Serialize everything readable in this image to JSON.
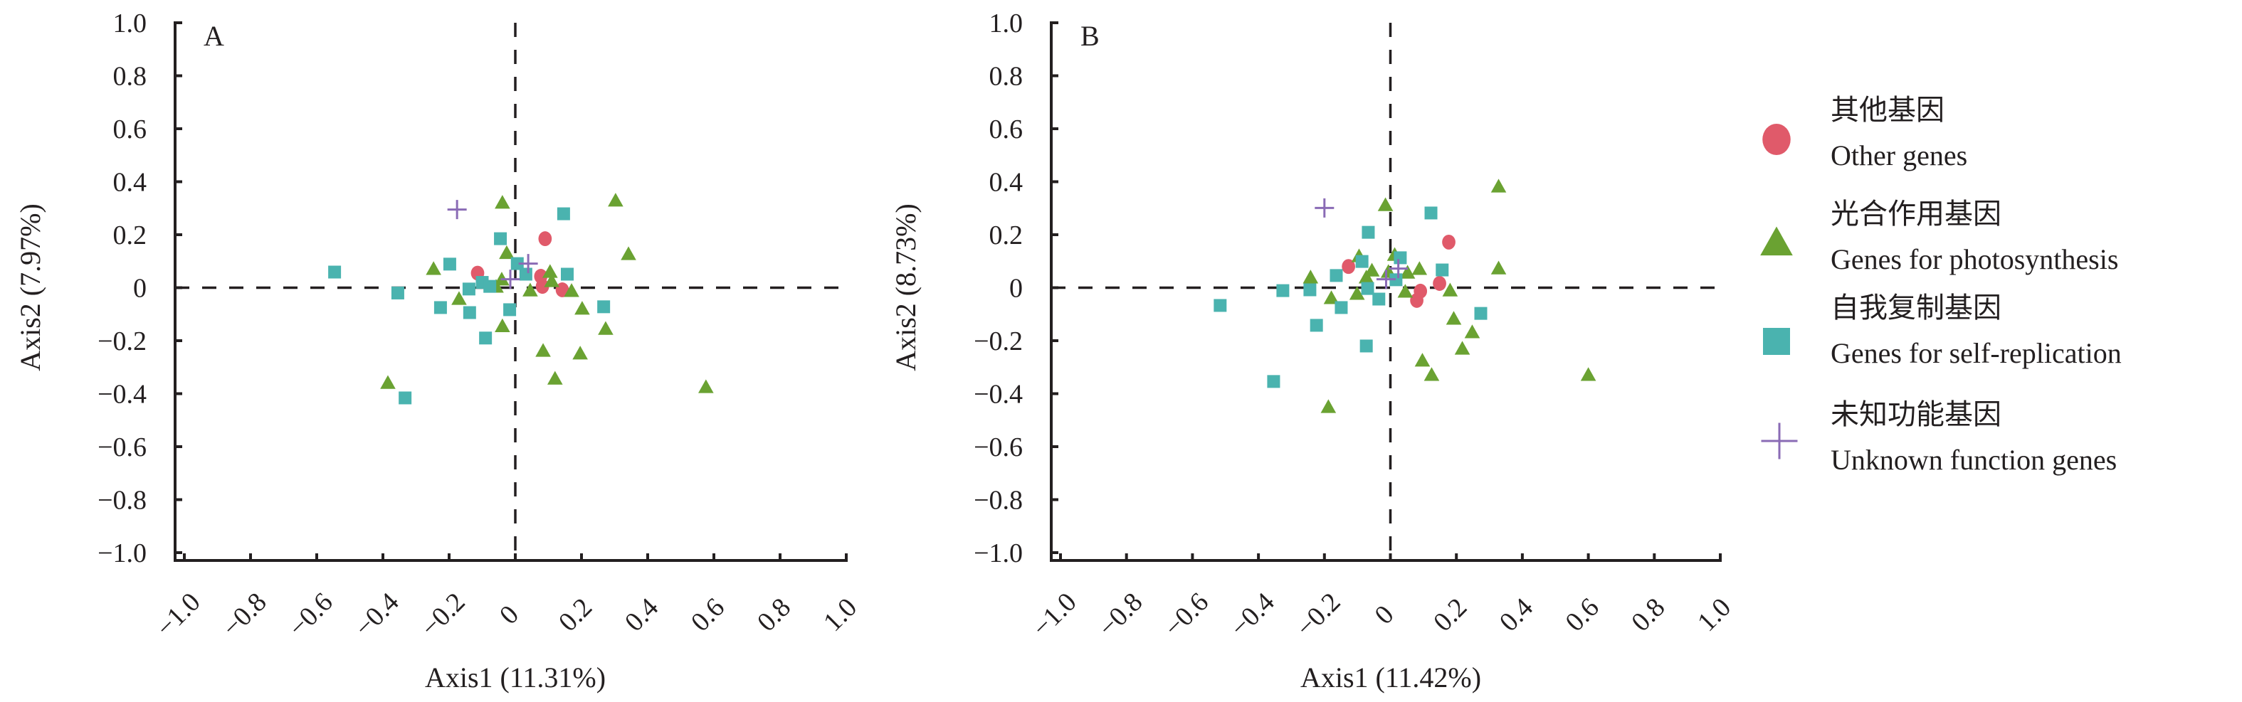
{
  "chart_data": [
    {
      "type": "scatter",
      "panel_label": "A",
      "xlabel": "Axis1 (11.31%)",
      "ylabel": "Axis2 (7.97%)",
      "xlim": [
        -1.0,
        1.0
      ],
      "ylim": [
        -1.0,
        1.0
      ],
      "x_ticks": [
        "−1.0",
        "−0.8",
        "−0.6",
        "−0.4",
        "−0.2",
        "0",
        "0.2",
        "0.4",
        "0.6",
        "0.8",
        "1.0"
      ],
      "y_ticks": [
        "1.0",
        "0.8",
        "0.6",
        "0.4",
        "0.2",
        "0",
        "−0.2",
        "−0.4",
        "−0.6",
        "−0.8",
        "−1.0"
      ],
      "reference_lines": {
        "x": 0,
        "y": 0,
        "style": "dashed"
      },
      "grid": false,
      "series": [
        {
          "name": "Other genes",
          "marker": "circle",
          "points": [
            [
              0.09,
              0.185
            ],
            [
              -0.114,
              0.055
            ],
            [
              0.077,
              0.043
            ],
            [
              0.082,
              0.005
            ],
            [
              0.142,
              -0.008
            ]
          ]
        },
        {
          "name": "Genes for photosynthesis",
          "marker": "triangle",
          "points": [
            [
              -0.039,
              0.32
            ],
            [
              0.303,
              0.328
            ],
            [
              0.342,
              0.126
            ],
            [
              -0.026,
              0.13
            ],
            [
              -0.247,
              0.07
            ],
            [
              -0.041,
              0.03
            ],
            [
              -0.058,
              0.003
            ],
            [
              0.105,
              0.059
            ],
            [
              0.11,
              0.024
            ],
            [
              0.045,
              -0.011
            ],
            [
              0.17,
              -0.013
            ],
            [
              -0.17,
              -0.043
            ],
            [
              0.202,
              -0.08
            ],
            [
              0.273,
              -0.156
            ],
            [
              -0.039,
              -0.146
            ],
            [
              0.084,
              -0.239
            ],
            [
              0.196,
              -0.249
            ],
            [
              0.12,
              -0.344
            ],
            [
              -0.385,
              -0.36
            ],
            [
              0.576,
              -0.376
            ]
          ]
        },
        {
          "name": "Genes for self-replication",
          "marker": "square",
          "points": [
            [
              -0.546,
              0.059
            ],
            [
              -0.355,
              -0.02
            ],
            [
              -0.333,
              -0.416
            ],
            [
              -0.198,
              0.089
            ],
            [
              -0.226,
              -0.075
            ],
            [
              -0.138,
              -0.094
            ],
            [
              -0.09,
              -0.19
            ],
            [
              -0.045,
              0.185
            ],
            [
              0.146,
              0.279
            ],
            [
              0.006,
              0.091
            ],
            [
              0.032,
              0.051
            ],
            [
              -0.1,
              0.02
            ],
            [
              -0.14,
              -0.005
            ],
            [
              -0.077,
              0.005
            ],
            [
              0.157,
              0.051
            ],
            [
              -0.017,
              -0.083
            ],
            [
              0.267,
              -0.072
            ]
          ]
        },
        {
          "name": "Unknown function genes",
          "marker": "plus",
          "points": [
            [
              -0.176,
              0.295
            ],
            [
              0.039,
              0.091
            ],
            [
              -0.015,
              0.032
            ]
          ]
        }
      ]
    },
    {
      "type": "scatter",
      "panel_label": "B",
      "xlabel": "Axis1 (11.42%)",
      "ylabel": "Axis2 (8.73%)",
      "xlim": [
        -1.0,
        1.0
      ],
      "ylim": [
        -1.0,
        1.0
      ],
      "x_ticks": [
        "−1.0",
        "−0.8",
        "−0.6",
        "−0.4",
        "−0.2",
        "0",
        "0.2",
        "0.4",
        "0.6",
        "0.8",
        "1.0"
      ],
      "y_ticks": [
        "1.0",
        "0.8",
        "0.6",
        "0.4",
        "0.2",
        "0",
        "−0.2",
        "−0.4",
        "−0.6",
        "−0.8",
        "−1.0"
      ],
      "reference_lines": {
        "x": 0,
        "y": 0,
        "style": "dashed"
      },
      "grid": false,
      "series": [
        {
          "name": "Other genes",
          "marker": "circle",
          "points": [
            [
              0.177,
              0.172
            ],
            [
              -0.127,
              0.08
            ],
            [
              0.149,
              0.016
            ],
            [
              0.091,
              -0.013
            ],
            [
              0.08,
              -0.048
            ]
          ]
        },
        {
          "name": "Genes for photosynthesis",
          "marker": "triangle",
          "points": [
            [
              -0.015,
              0.311
            ],
            [
              0.328,
              0.381
            ],
            [
              0.328,
              0.072
            ],
            [
              0.013,
              0.123
            ],
            [
              -0.095,
              0.118
            ],
            [
              -0.056,
              0.064
            ],
            [
              -0.073,
              0.038
            ],
            [
              -0.242,
              0.038
            ],
            [
              -0.006,
              0.059
            ],
            [
              0.052,
              0.056
            ],
            [
              0.088,
              0.07
            ],
            [
              -0.101,
              -0.024
            ],
            [
              -0.179,
              -0.04
            ],
            [
              0.045,
              -0.016
            ],
            [
              0.181,
              -0.011
            ],
            [
              0.192,
              -0.118
            ],
            [
              0.248,
              -0.169
            ],
            [
              0.218,
              -0.231
            ],
            [
              0.097,
              -0.276
            ],
            [
              0.125,
              -0.33
            ],
            [
              0.6,
              -0.33
            ],
            [
              -0.188,
              -0.451
            ]
          ]
        },
        {
          "name": "Genes for self-replication",
          "marker": "square",
          "points": [
            [
              -0.516,
              -0.067
            ],
            [
              -0.326,
              -0.011
            ],
            [
              -0.354,
              -0.354
            ],
            [
              -0.244,
              -0.008
            ],
            [
              -0.164,
              0.046
            ],
            [
              -0.149,
              -0.075
            ],
            [
              -0.224,
              -0.142
            ],
            [
              -0.073,
              -0.22
            ],
            [
              -0.067,
              0.209
            ],
            [
              -0.086,
              0.099
            ],
            [
              -0.069,
              -0.003
            ],
            [
              -0.035,
              -0.043
            ],
            [
              0.03,
              0.113
            ],
            [
              0.017,
              0.03
            ],
            [
              0.123,
              0.282
            ],
            [
              0.157,
              0.067
            ],
            [
              0.274,
              -0.097
            ]
          ]
        },
        {
          "name": "Unknown function genes",
          "marker": "plus",
          "points": [
            [
              -0.2,
              0.301
            ],
            [
              0.024,
              0.072
            ],
            [
              -0.013,
              0.032
            ]
          ]
        }
      ]
    }
  ],
  "legend": {
    "position": "right",
    "items": [
      {
        "marker": "circle",
        "label_zh": "其他基因",
        "label_en": "Other genes",
        "color": "#E05A6A"
      },
      {
        "marker": "triangle",
        "label_zh": "光合作用基因",
        "label_en": "Genes for photosynthesis",
        "color": "#6AA232"
      },
      {
        "marker": "square",
        "label_zh": "自我复制基因",
        "label_en": "Genes for self-replication",
        "color": "#4AB3AF"
      },
      {
        "marker": "plus",
        "label_zh": "未知功能基因",
        "label_en": "Unknown function genes",
        "color": "#8A6BB5"
      }
    ]
  },
  "colors": {
    "circle": "#E05A6A",
    "triangle": "#6AA232",
    "square": "#4AB3AF",
    "plus": "#8A6BB5",
    "axis": "#231f20"
  }
}
